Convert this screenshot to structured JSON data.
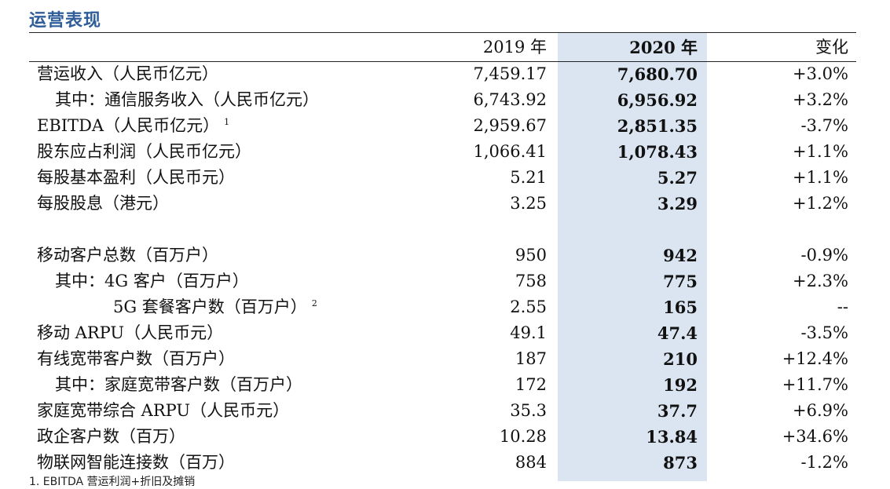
{
  "title": "运营表现",
  "headers": {
    "y2019": "2019 年",
    "y2020": "2020 年",
    "change": "变化"
  },
  "rows": [
    {
      "label": "营运收入（人民币亿元）",
      "indent": 0,
      "sup": "",
      "v2019": "7,459.17",
      "v2020": "7,680.70",
      "change": "+3.0%"
    },
    {
      "label": "其中：通信服务收入（人民币亿元）",
      "indent": 1,
      "sup": "",
      "v2019": "6,743.92",
      "v2020": "6,956.92",
      "change": "+3.2%"
    },
    {
      "label": "EBITDA（人民币亿元）",
      "indent": 0,
      "sup": "1",
      "v2019": "2,959.67",
      "v2020": "2,851.35",
      "change": "-3.7%"
    },
    {
      "label": "股东应占利润（人民币亿元）",
      "indent": 0,
      "sup": "",
      "v2019": "1,066.41",
      "v2020": "1,078.43",
      "change": "+1.1%"
    },
    {
      "label": "每股基本盈利（人民币元）",
      "indent": 0,
      "sup": "",
      "v2019": "5.21",
      "v2020": "5.27",
      "change": "+1.1%"
    },
    {
      "label": "每股股息（港元）",
      "indent": 0,
      "sup": "",
      "v2019": "3.25",
      "v2020": "3.29",
      "change": "+1.2%"
    },
    {
      "label": "",
      "indent": 0,
      "sup": "",
      "v2019": "",
      "v2020": "",
      "change": ""
    },
    {
      "label": "移动客户总数（百万户）",
      "indent": 0,
      "sup": "",
      "v2019": "950",
      "v2020": "942",
      "change": "-0.9%"
    },
    {
      "label": "其中：4G 客户（百万户）",
      "indent": 1,
      "sup": "",
      "v2019": "758",
      "v2020": "775",
      "change": "+2.3%"
    },
    {
      "label": "5G 套餐客户数（百万户）",
      "indent": 2,
      "sup": "2",
      "v2019": "2.55",
      "v2020": "165",
      "change": "--"
    },
    {
      "label": "移动 ARPU（人民币元）",
      "indent": 0,
      "sup": "",
      "v2019": "49.1",
      "v2020": "47.4",
      "change": "-3.5%"
    },
    {
      "label": "有线宽带客户数（百万户）",
      "indent": 0,
      "sup": "",
      "v2019": "187",
      "v2020": "210",
      "change": "+12.4%"
    },
    {
      "label": "其中：家庭宽带客户数（百万户）",
      "indent": 1,
      "sup": "",
      "v2019": "172",
      "v2020": "192",
      "change": "+11.7%"
    },
    {
      "label": "家庭宽带综合 ARPU（人民币元）",
      "indent": 0,
      "sup": "",
      "v2019": "35.3",
      "v2020": "37.7",
      "change": "+6.9%"
    },
    {
      "label": "政企客户数（百万）",
      "indent": 0,
      "sup": "",
      "v2019": "10.28",
      "v2020": "13.84",
      "change": "+34.6%"
    },
    {
      "label": "物联网智能连接数（百万）",
      "indent": 0,
      "sup": "",
      "v2019": "884",
      "v2020": "873",
      "change": "-1.2%"
    }
  ],
  "footnote": "1. EBITDA 营运利润+折旧及摊销"
}
